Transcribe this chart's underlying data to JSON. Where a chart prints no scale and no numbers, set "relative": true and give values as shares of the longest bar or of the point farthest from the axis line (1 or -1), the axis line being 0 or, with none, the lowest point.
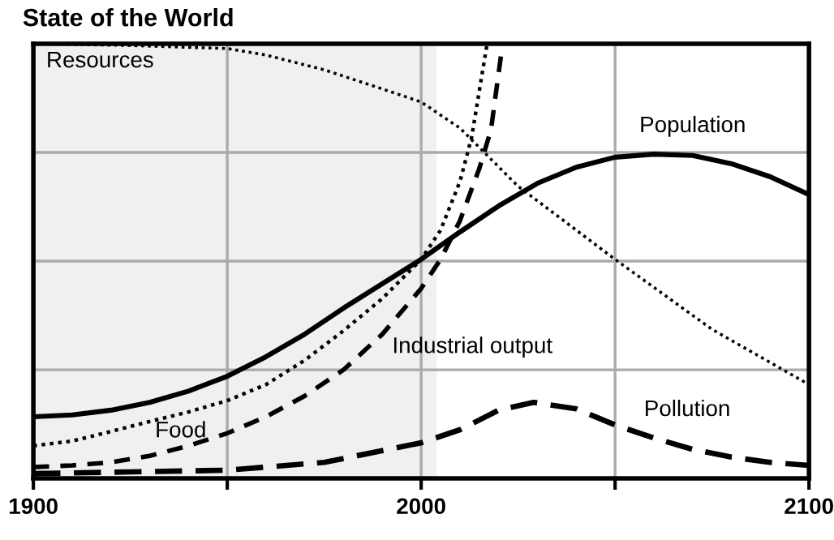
{
  "chart_data": {
    "type": "line",
    "title": "State of the World",
    "relative": true,
    "xlim": [
      1900,
      2100
    ],
    "xticks": [
      1900,
      {
        "value": 1950,
        "label": null
      },
      2000,
      {
        "value": 2050,
        "label": null
      },
      2100
    ],
    "grid": true,
    "legend": false,
    "tick_labels": "x",
    "bands": [
      {
        "axis": "x",
        "from": 1900,
        "to": 2004,
        "color": "#f0f0f0"
      }
    ],
    "series": [
      {
        "name": "Population",
        "color": "#000000",
        "line_style": "solid",
        "x": [
          1900,
          1910,
          1920,
          1930,
          1940,
          1950,
          1960,
          1970,
          1980,
          1990,
          2000,
          2010,
          2020,
          2030,
          2040,
          2050,
          2060,
          2070,
          2080,
          2090,
          2100
        ],
        "values": [
          0.142,
          0.146,
          0.157,
          0.175,
          0.201,
          0.235,
          0.28,
          0.332,
          0.392,
          0.448,
          0.504,
          0.567,
          0.627,
          0.679,
          0.716,
          0.739,
          0.746,
          0.743,
          0.724,
          0.694,
          0.653
        ]
      },
      {
        "name": "Food",
        "color": "#000000",
        "line_style": "dotted",
        "x": [
          1900,
          1910,
          1920,
          1930,
          1940,
          1950,
          1960,
          1970,
          1980,
          1990,
          2000,
          2005,
          2010,
          2013,
          2017
        ],
        "values": [
          0.075,
          0.086,
          0.108,
          0.131,
          0.153,
          0.179,
          0.216,
          0.272,
          0.34,
          0.414,
          0.504,
          0.571,
          0.683,
          0.784,
          1.0
        ]
      },
      {
        "name": "Industrial output",
        "color": "#000000",
        "line_style": "dashed",
        "x": [
          1900,
          1910,
          1920,
          1930,
          1940,
          1950,
          1960,
          1970,
          1980,
          1990,
          2000,
          2005,
          2010,
          2015,
          2018,
          2021
        ],
        "values": [
          0.026,
          0.03,
          0.037,
          0.052,
          0.075,
          0.104,
          0.142,
          0.19,
          0.25,
          0.332,
          0.437,
          0.504,
          0.593,
          0.713,
          0.802,
          1.0
        ]
      },
      {
        "name": "Pollution",
        "color": "#000000",
        "line_style": "dashed",
        "x": [
          1900,
          1925,
          1950,
          1975,
          2000,
          2010,
          2020,
          2029,
          2040,
          2050,
          2060,
          2070,
          2080,
          2090,
          2100
        ],
        "values": [
          0.011,
          0.015,
          0.019,
          0.037,
          0.082,
          0.112,
          0.157,
          0.175,
          0.16,
          0.123,
          0.093,
          0.067,
          0.049,
          0.037,
          0.03
        ]
      },
      {
        "name": "Resources",
        "color": "#000000",
        "line_style": "dotted",
        "x": [
          1900,
          1925,
          1950,
          1960,
          1975,
          1990,
          2000,
          2010,
          2025,
          2050,
          2075,
          2100
        ],
        "values": [
          1.0,
          0.996,
          0.989,
          0.974,
          0.94,
          0.896,
          0.866,
          0.806,
          0.672,
          0.504,
          0.343,
          0.216
        ]
      }
    ]
  }
}
